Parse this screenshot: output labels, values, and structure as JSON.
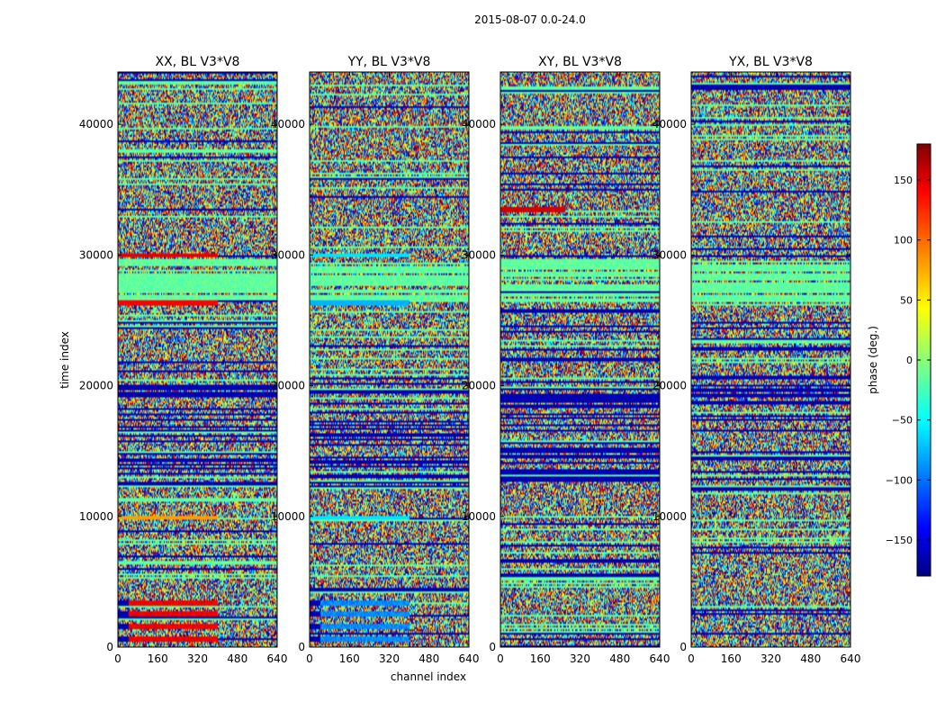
{
  "chart_data": {
    "type": "heatmap",
    "title": "2015-08-07 0.0-24.0",
    "xlabel": "channel index",
    "ylabel": "time index",
    "xlim": [
      0,
      640
    ],
    "ylim": [
      0,
      44000
    ],
    "xticks": [
      0,
      160,
      320,
      480,
      640
    ],
    "yticks": [
      0,
      10000,
      20000,
      30000,
      40000
    ],
    "panels": [
      {
        "title": "XX, BL V3*V8",
        "pol": "XX"
      },
      {
        "title": "YY, BL V3*V8",
        "pol": "YY"
      },
      {
        "title": "XY, BL V3*V8",
        "pol": "XY"
      },
      {
        "title": "YX, BL V3*V8",
        "pol": "YX"
      }
    ],
    "colorbar": {
      "label": "phase (deg.)",
      "range": [
        -180,
        180
      ],
      "ticks": [
        -150,
        -100,
        -50,
        0,
        50,
        100,
        150
      ],
      "colormap": "jet",
      "tick_labels": [
        "−150",
        "−100",
        "−50",
        "0",
        "50",
        "100",
        "150"
      ]
    },
    "colors": {
      "jet_dark_blue": "#00007f",
      "jet_blue": "#0000ff",
      "jet_cyan": "#00ffff",
      "jet_yellow": "#ffff00",
      "jet_red": "#ff0000",
      "jet_dark_red": "#7f0000"
    }
  }
}
